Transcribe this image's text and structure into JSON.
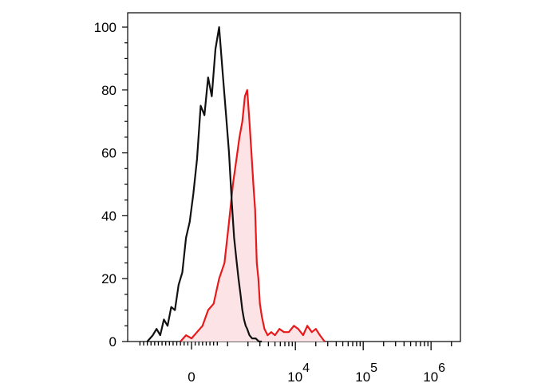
{
  "chart_data": {
    "type": "histogram",
    "title": "",
    "xlabel": "",
    "ylabel": "",
    "x_scale": "biexponential",
    "ylim": [
      0,
      100
    ],
    "grid": false,
    "legend": "none",
    "y_ticks": [
      {
        "value": 0,
        "label": "0"
      },
      {
        "value": 20,
        "label": "20"
      },
      {
        "value": 40,
        "label": "40"
      },
      {
        "value": 60,
        "label": "60"
      },
      {
        "value": 80,
        "label": "80"
      },
      {
        "value": 100,
        "label": "100"
      }
    ],
    "x_ticks": [
      {
        "value": 0,
        "base": "0",
        "exp": ""
      },
      {
        "value": 10000,
        "base": "10",
        "exp": "4"
      },
      {
        "value": 100000,
        "base": "10",
        "exp": "5"
      },
      {
        "value": 1000000,
        "base": "10",
        "exp": "6"
      }
    ],
    "series": [
      {
        "color": "#111111",
        "fill": "none",
        "x": [
          -1200,
          -1050,
          -950,
          -850,
          -750,
          -650,
          -550,
          -450,
          -350,
          -250,
          -150,
          -50,
          50,
          150,
          250,
          350,
          450,
          550,
          650,
          750,
          850,
          950,
          1050,
          1150,
          1250,
          1350,
          1450,
          1550,
          1650,
          1750,
          1850,
          1950,
          2100,
          2300,
          2600,
          2900,
          3200
        ],
        "values": [
          0,
          2,
          4,
          2,
          7,
          5,
          11,
          10,
          18,
          22,
          33,
          38,
          47,
          58,
          75,
          72,
          84,
          78,
          93,
          100,
          85,
          72,
          60,
          45,
          33,
          26,
          20,
          15,
          10,
          7,
          5,
          4,
          2,
          1,
          1,
          0,
          0
        ]
      },
      {
        "color": "#e8191b",
        "fill": "#fce4e6",
        "x": [
          -300,
          -150,
          0,
          150,
          300,
          450,
          600,
          750,
          900,
          1050,
          1200,
          1350,
          1500,
          1650,
          1800,
          1950,
          2100,
          2250,
          2400,
          2550,
          2700,
          2850,
          3000,
          3200,
          3500,
          3900,
          4400,
          5000,
          5800,
          6800,
          8000,
          9500,
          11000,
          13000,
          15000,
          17500,
          20000,
          23000,
          27000
        ],
        "values": [
          0,
          2,
          1,
          3,
          5,
          10,
          12,
          20,
          25,
          38,
          50,
          58,
          65,
          70,
          78,
          80,
          70,
          60,
          50,
          42,
          25,
          20,
          12,
          8,
          4,
          2,
          3,
          2,
          4,
          3,
          3,
          5,
          4,
          2,
          5,
          3,
          4,
          2,
          0
        ]
      }
    ]
  }
}
